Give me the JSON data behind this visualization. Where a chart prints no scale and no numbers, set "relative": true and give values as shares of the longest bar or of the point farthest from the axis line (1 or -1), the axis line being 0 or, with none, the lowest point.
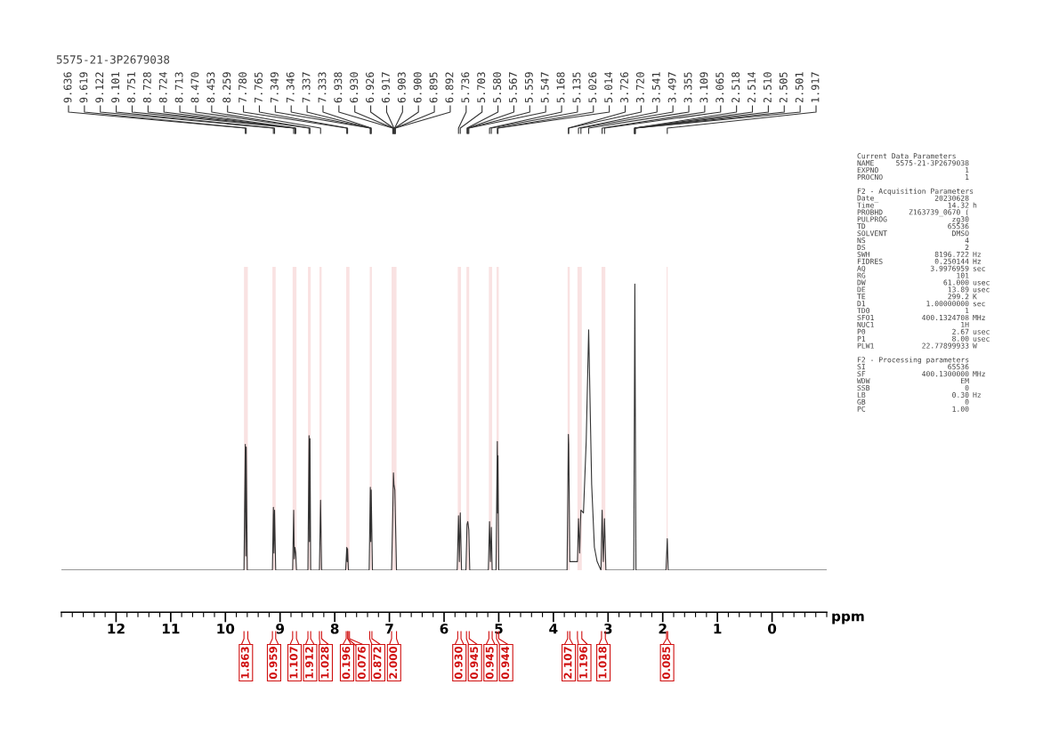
{
  "chart_data": {
    "type": "line",
    "title": "5575-21-3P2679038",
    "xlabel": "ppm",
    "relative": true,
    "xlim": [
      13.0,
      -1.0
    ],
    "xticks": [
      12,
      11,
      10,
      9,
      8,
      7,
      6,
      5,
      4,
      3,
      2,
      1,
      0
    ],
    "series": [
      {
        "color": "#333333",
        "x": [
          13.0,
          9.66,
          9.636,
          9.627,
          9.619,
          9.6,
          9.14,
          9.122,
          9.112,
          9.101,
          9.08,
          8.77,
          8.751,
          8.74,
          8.728,
          8.713,
          8.7,
          8.49,
          8.47,
          8.462,
          8.453,
          8.44,
          8.28,
          8.259,
          8.24,
          7.8,
          7.78,
          7.772,
          7.765,
          7.75,
          7.37,
          7.349,
          7.341,
          7.333,
          7.31,
          6.96,
          6.938,
          6.926,
          6.917,
          6.9,
          6.892,
          6.87,
          5.76,
          5.736,
          5.72,
          5.703,
          5.68,
          5.6,
          5.58,
          5.567,
          5.559,
          5.547,
          5.53,
          5.19,
          5.168,
          5.152,
          5.135,
          5.12,
          5.05,
          5.026,
          5.02,
          5.014,
          5.0,
          3.75,
          3.726,
          3.72,
          3.7,
          3.56,
          3.541,
          3.52,
          3.497,
          3.45,
          3.4,
          3.355,
          3.3,
          3.25,
          3.2,
          3.13,
          3.109,
          3.087,
          3.065,
          3.04,
          2.53,
          2.51,
          2.49,
          1.94,
          1.917,
          1.9,
          -1.0
        ],
        "values": [
          0,
          0,
          0.44,
          0.05,
          0.43,
          0,
          0,
          0.22,
          0.06,
          0.21,
          0,
          0,
          0.21,
          0.04,
          0.08,
          0.06,
          0,
          0,
          0.47,
          0.1,
          0.46,
          0,
          0,
          0.245,
          0,
          0,
          0.08,
          0.03,
          0.075,
          0,
          0,
          0.29,
          0.1,
          0.28,
          0,
          0,
          0.2,
          0.34,
          0.3,
          0.28,
          0.2,
          0,
          0,
          0.19,
          0.03,
          0.2,
          0,
          0,
          0.16,
          0.17,
          0.16,
          0.14,
          0,
          0,
          0.17,
          0.03,
          0.15,
          0,
          0,
          0.45,
          0.2,
          0.4,
          0,
          0,
          0.475,
          0.44,
          0.03,
          0.03,
          0.18,
          0.06,
          0.21,
          0.2,
          0.45,
          0.84,
          0.3,
          0.08,
          0.03,
          0,
          0.21,
          0.03,
          0.18,
          0,
          0,
          1.0,
          0,
          0,
          0.11,
          0,
          0
        ]
      }
    ],
    "annotations": [
      {
        "text": "9.636",
        "x": 9.636
      },
      {
        "text": "9.619",
        "x": 9.619
      },
      {
        "text": "9.122",
        "x": 9.122
      },
      {
        "text": "9.101",
        "x": 9.101
      },
      {
        "text": "8.751",
        "x": 8.751
      },
      {
        "text": "8.728",
        "x": 8.728
      },
      {
        "text": "8.724",
        "x": 8.724
      },
      {
        "text": "8.713",
        "x": 8.713
      },
      {
        "text": "8.470",
        "x": 8.47
      },
      {
        "text": "8.453",
        "x": 8.453
      },
      {
        "text": "8.259",
        "x": 8.259
      },
      {
        "text": "7.780",
        "x": 7.78
      },
      {
        "text": "7.765",
        "x": 7.765
      },
      {
        "text": "7.349",
        "x": 7.349
      },
      {
        "text": "7.346",
        "x": 7.346
      },
      {
        "text": "7.337",
        "x": 7.337
      },
      {
        "text": "7.333",
        "x": 7.333
      },
      {
        "text": "6.938",
        "x": 6.938
      },
      {
        "text": "6.930",
        "x": 6.93
      },
      {
        "text": "6.926",
        "x": 6.926
      },
      {
        "text": "6.917",
        "x": 6.917
      },
      {
        "text": "6.903",
        "x": 6.903
      },
      {
        "text": "6.900",
        "x": 6.9
      },
      {
        "text": "6.895",
        "x": 6.895
      },
      {
        "text": "6.892",
        "x": 6.892
      },
      {
        "text": "5.736",
        "x": 5.736
      },
      {
        "text": "5.703",
        "x": 5.703
      },
      {
        "text": "5.580",
        "x": 5.58
      },
      {
        "text": "5.567",
        "x": 5.567
      },
      {
        "text": "5.559",
        "x": 5.559
      },
      {
        "text": "5.547",
        "x": 5.547
      },
      {
        "text": "5.168",
        "x": 5.168
      },
      {
        "text": "5.135",
        "x": 5.135
      },
      {
        "text": "5.026",
        "x": 5.026
      },
      {
        "text": "5.014",
        "x": 5.014
      },
      {
        "text": "3.726",
        "x": 3.726
      },
      {
        "text": "3.720",
        "x": 3.72
      },
      {
        "text": "3.541",
        "x": 3.541
      },
      {
        "text": "3.497",
        "x": 3.497
      },
      {
        "text": "3.355",
        "x": 3.355
      },
      {
        "text": "3.109",
        "x": 3.109
      },
      {
        "text": "3.065",
        "x": 3.065
      },
      {
        "text": "2.518",
        "x": 2.518
      },
      {
        "text": "2.514",
        "x": 2.514
      },
      {
        "text": "2.510",
        "x": 2.51
      },
      {
        "text": "2.505",
        "x": 2.505
      },
      {
        "text": "2.501",
        "x": 2.501
      },
      {
        "text": "1.917",
        "x": 1.917
      },
      "Current Data Parameters",
      "NAME\t5575-21-3P2679038\t",
      "EXPNO\t1\t",
      "PROCNO\t1\t",
      "F2 - Acquisition Parameters",
      "Date_\t20230628\t",
      "Time\t14.32\th",
      "PROBHD\tZ163739_0670 (\t",
      "PULPROG\tzg30\t",
      "TD\t65536\t",
      "SOLVENT\tDMSO\t",
      "NS\t4\t",
      "DS\t2\t",
      "SWH\t8196.722\tHz",
      "FIDRES\t0.250144\tHz",
      "AQ\t3.9976959\tsec",
      "RG\t101\t",
      "DW\t61.000\tusec",
      "DE\t13.89\tusec",
      "TE\t299.2\tK",
      "D1\t1.00000000\tsec",
      "TD0\t1\t",
      "SFO1\t400.1324708\tMHz",
      "NUC1\t1H\t",
      "P0\t2.67\tusec",
      "P1\t8.00\tusec",
      "PLW1\t22.77899933\tW",
      "F2 - Processing parameters",
      "SI\t65536\t",
      "SF\t400.1300000\tMHz",
      "WDW\tEM\t",
      "SSB\t0\t",
      "LB\t0.30\tHz",
      "GB\t0\t",
      "PC\t1.00\t"
    ],
    "bands": [
      {
        "axis": "x",
        "from": 9.66,
        "to": 9.59,
        "label": "1.863",
        "color": "#d01010"
      },
      {
        "axis": "x",
        "from": 9.14,
        "to": 9.08,
        "label": "0.959",
        "color": "#d01010"
      },
      {
        "axis": "x",
        "from": 8.77,
        "to": 8.7,
        "label": "1.107",
        "color": "#d01010"
      },
      {
        "axis": "x",
        "from": 8.49,
        "to": 8.44,
        "label": "1.912",
        "color": "#d01010"
      },
      {
        "axis": "x",
        "from": 8.28,
        "to": 8.24,
        "label": "1.028",
        "color": "#d01010"
      },
      {
        "axis": "x",
        "from": 7.79,
        "to": 7.76,
        "label": "0.196",
        "color": "#d01010"
      },
      {
        "axis": "x",
        "from": 7.76,
        "to": 7.73,
        "label": "0.076",
        "color": "#d01010"
      },
      {
        "axis": "x",
        "from": 7.36,
        "to": 7.32,
        "label": "0.872",
        "color": "#d01010"
      },
      {
        "axis": "x",
        "from": 6.96,
        "to": 6.87,
        "label": "2.000",
        "color": "#d01010"
      },
      {
        "axis": "x",
        "from": 5.75,
        "to": 5.69,
        "label": "0.930",
        "color": "#d01010"
      },
      {
        "axis": "x",
        "from": 5.59,
        "to": 5.54,
        "label": "0.945",
        "color": "#d01010"
      },
      {
        "axis": "x",
        "from": 5.18,
        "to": 5.12,
        "label": "0.945",
        "color": "#d01010"
      },
      {
        "axis": "x",
        "from": 5.04,
        "to": 5.0,
        "label": "0.944",
        "color": "#d01010"
      },
      {
        "axis": "x",
        "from": 3.74,
        "to": 3.7,
        "label": "2.107",
        "color": "#d01010"
      },
      {
        "axis": "x",
        "from": 3.56,
        "to": 3.48,
        "label": "1.196",
        "color": "#d01010"
      },
      {
        "axis": "x",
        "from": 3.12,
        "to": 3.05,
        "label": "1.018",
        "color": "#d01010"
      },
      {
        "axis": "x",
        "from": 1.93,
        "to": 1.91,
        "label": "0.085",
        "color": "#d01010"
      }
    ]
  }
}
